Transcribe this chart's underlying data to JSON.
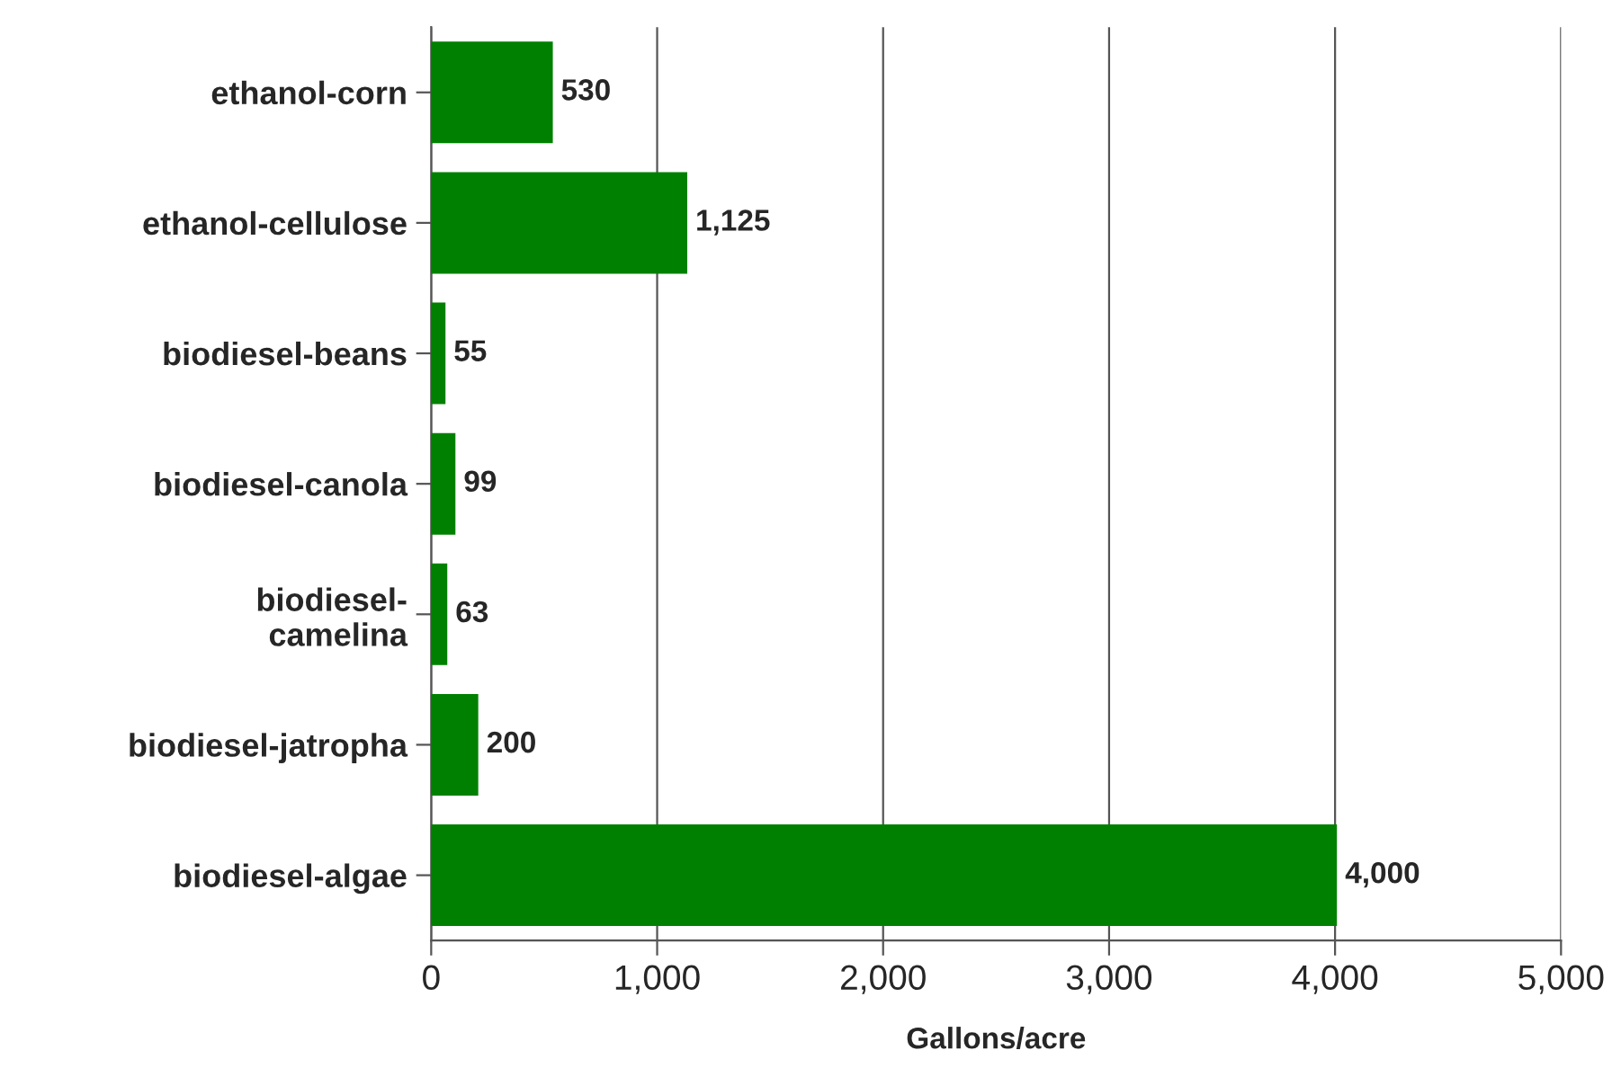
{
  "chart_data": {
    "type": "bar",
    "orientation": "horizontal",
    "xlabel": "Gallons/acre",
    "categories": [
      "ethanol-corn",
      "ethanol-cellulose",
      "biodiesel-beans",
      "biodiesel-canola",
      "biodiesel-\ncamelina",
      "biodiesel-jatropha",
      "biodiesel-algae"
    ],
    "values": [
      530,
      1125,
      55,
      99,
      63,
      200,
      4000
    ],
    "value_labels": [
      "530",
      "1,125",
      "55",
      "99",
      "63",
      "200",
      "4,000"
    ],
    "color": "#008000",
    "xlim": [
      0,
      5000
    ],
    "xticks": [
      {
        "value": 0,
        "label": "0"
      },
      {
        "value": 1000,
        "label": "1,000"
      },
      {
        "value": 2000,
        "label": "2,000"
      },
      {
        "value": 3000,
        "label": "3,000"
      },
      {
        "value": 4000,
        "label": "4,000"
      },
      {
        "value": 5000,
        "label": "5,000"
      }
    ],
    "grid": "x"
  }
}
